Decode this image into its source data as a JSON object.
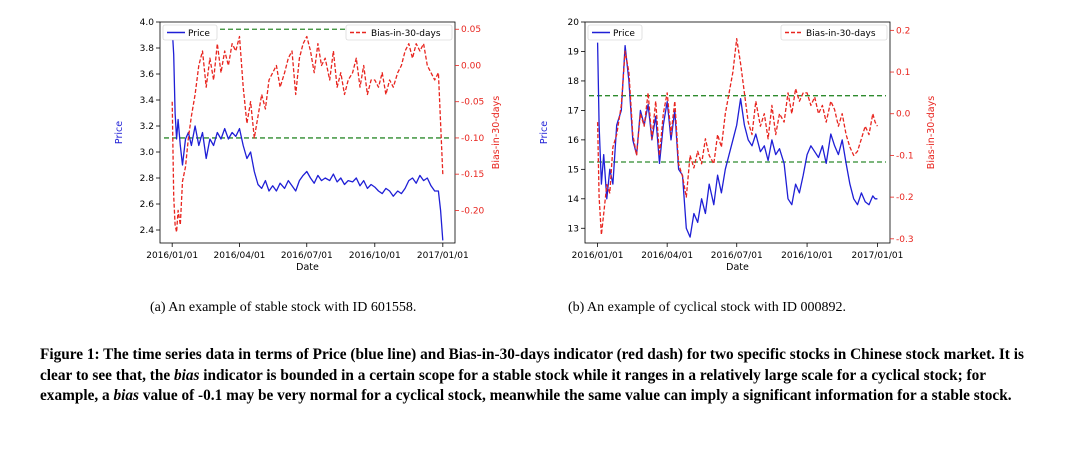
{
  "colors": {
    "price": "#1f1fd6",
    "bias": "#e8251f",
    "threshold": "#2e8b2e",
    "axis": "#000000"
  },
  "chart_data": [
    {
      "type": "line",
      "xlabel": "Date",
      "ylabel_left": "Price",
      "ylabel_right": "Bias-in-30-days",
      "x_range": [
        "2016-01-01",
        "2017-01-01"
      ],
      "x_ticks": [
        "2016/01/01",
        "2016/04/01",
        "2016/07/01",
        "2016/10/01",
        "2017/01/01"
      ],
      "y_left": {
        "min": 2.3,
        "max": 4.0,
        "ticks": [
          "2.4",
          "2.6",
          "2.8",
          "3.0",
          "3.2",
          "3.4",
          "3.6",
          "3.8",
          "4.0"
        ]
      },
      "y_right": {
        "min": -0.245,
        "max": 0.06,
        "ticks": [
          "-0.20",
          "-0.15",
          "-0.10",
          "-0.05",
          "0.00",
          "0.05"
        ]
      },
      "legend_placement": {
        "price": "top-left",
        "bias": "top-right"
      },
      "thresholds_right_axis": [
        0.05,
        -0.1
      ],
      "series": [
        {
          "name": "Price",
          "axis": "left",
          "style": "solid",
          "x": [
            "2016-01-01",
            "2016-01-03",
            "2016-01-05",
            "2016-01-07",
            "2016-01-09",
            "2016-01-12",
            "2016-01-15",
            "2016-01-19",
            "2016-01-23",
            "2016-01-27",
            "2016-02-01",
            "2016-02-06",
            "2016-02-11",
            "2016-02-16",
            "2016-02-21",
            "2016-02-26",
            "2016-03-02",
            "2016-03-07",
            "2016-03-12",
            "2016-03-17",
            "2016-03-22",
            "2016-03-27",
            "2016-04-01",
            "2016-04-06",
            "2016-04-11",
            "2016-04-16",
            "2016-04-21",
            "2016-04-26",
            "2016-05-01",
            "2016-05-06",
            "2016-05-11",
            "2016-05-16",
            "2016-05-21",
            "2016-05-26",
            "2016-06-01",
            "2016-06-06",
            "2016-06-11",
            "2016-06-16",
            "2016-06-21",
            "2016-06-26",
            "2016-07-01",
            "2016-07-06",
            "2016-07-11",
            "2016-07-16",
            "2016-07-21",
            "2016-07-26",
            "2016-08-01",
            "2016-08-06",
            "2016-08-11",
            "2016-08-16",
            "2016-08-21",
            "2016-08-26",
            "2016-09-01",
            "2016-09-06",
            "2016-09-11",
            "2016-09-16",
            "2016-09-21",
            "2016-09-26",
            "2016-10-01",
            "2016-10-06",
            "2016-10-11",
            "2016-10-16",
            "2016-10-21",
            "2016-10-26",
            "2016-11-01",
            "2016-11-06",
            "2016-11-11",
            "2016-11-16",
            "2016-11-21",
            "2016-11-26",
            "2016-12-01",
            "2016-12-06",
            "2016-12-11",
            "2016-12-16",
            "2016-12-21",
            "2016-12-26",
            "2016-12-29",
            "2017-01-01"
          ],
          "values": [
            3.95,
            3.75,
            3.3,
            3.1,
            3.25,
            3.05,
            2.9,
            3.1,
            3.15,
            3.05,
            3.2,
            3.05,
            3.15,
            2.95,
            3.1,
            3.05,
            3.15,
            3.1,
            3.18,
            3.1,
            3.15,
            3.12,
            3.18,
            3.05,
            2.95,
            3.0,
            2.85,
            2.75,
            2.72,
            2.78,
            2.7,
            2.74,
            2.7,
            2.76,
            2.72,
            2.78,
            2.74,
            2.7,
            2.78,
            2.82,
            2.85,
            2.8,
            2.76,
            2.82,
            2.78,
            2.8,
            2.78,
            2.83,
            2.77,
            2.8,
            2.75,
            2.78,
            2.77,
            2.8,
            2.74,
            2.78,
            2.72,
            2.75,
            2.73,
            2.7,
            2.68,
            2.72,
            2.7,
            2.66,
            2.7,
            2.68,
            2.72,
            2.78,
            2.8,
            2.76,
            2.82,
            2.78,
            2.8,
            2.74,
            2.7,
            2.7,
            2.55,
            2.32
          ]
        },
        {
          "name": "Bias-in-30-days",
          "axis": "right",
          "style": "dashed",
          "x": [
            "2016-01-01",
            "2016-01-03",
            "2016-01-05",
            "2016-01-07",
            "2016-01-09",
            "2016-01-12",
            "2016-01-15",
            "2016-01-19",
            "2016-01-23",
            "2016-01-27",
            "2016-02-01",
            "2016-02-06",
            "2016-02-11",
            "2016-02-16",
            "2016-02-21",
            "2016-02-26",
            "2016-03-02",
            "2016-03-07",
            "2016-03-12",
            "2016-03-17",
            "2016-03-22",
            "2016-03-27",
            "2016-04-01",
            "2016-04-06",
            "2016-04-11",
            "2016-04-16",
            "2016-04-21",
            "2016-04-26",
            "2016-05-01",
            "2016-05-06",
            "2016-05-11",
            "2016-05-16",
            "2016-05-21",
            "2016-05-26",
            "2016-06-01",
            "2016-06-06",
            "2016-06-11",
            "2016-06-16",
            "2016-06-21",
            "2016-06-26",
            "2016-07-01",
            "2016-07-06",
            "2016-07-11",
            "2016-07-16",
            "2016-07-21",
            "2016-07-26",
            "2016-08-01",
            "2016-08-06",
            "2016-08-11",
            "2016-08-16",
            "2016-08-21",
            "2016-08-26",
            "2016-09-01",
            "2016-09-06",
            "2016-09-11",
            "2016-09-16",
            "2016-09-21",
            "2016-09-26",
            "2016-10-01",
            "2016-10-06",
            "2016-10-11",
            "2016-10-16",
            "2016-10-21",
            "2016-10-26",
            "2016-11-01",
            "2016-11-06",
            "2016-11-11",
            "2016-11-16",
            "2016-11-21",
            "2016-11-26",
            "2016-12-01",
            "2016-12-06",
            "2016-12-11",
            "2016-12-16",
            "2016-12-21",
            "2016-12-26",
            "2016-12-29",
            "2017-01-01"
          ],
          "values": [
            -0.05,
            -0.18,
            -0.22,
            -0.23,
            -0.2,
            -0.22,
            -0.16,
            -0.14,
            -0.1,
            -0.07,
            -0.04,
            0.0,
            0.02,
            -0.03,
            0.01,
            -0.02,
            0.03,
            -0.01,
            0.02,
            0.0,
            0.03,
            0.02,
            0.04,
            -0.03,
            -0.08,
            -0.05,
            -0.1,
            -0.07,
            -0.04,
            -0.06,
            -0.02,
            -0.01,
            0.0,
            -0.03,
            -0.01,
            0.01,
            0.02,
            -0.04,
            0.01,
            0.03,
            0.04,
            0.02,
            -0.01,
            0.03,
            0.0,
            0.01,
            -0.02,
            0.02,
            -0.03,
            -0.01,
            -0.04,
            -0.02,
            -0.01,
            0.01,
            -0.03,
            0.0,
            -0.04,
            -0.02,
            -0.02,
            -0.03,
            -0.01,
            -0.04,
            -0.02,
            -0.03,
            -0.01,
            0.0,
            0.02,
            0.03,
            0.01,
            0.03,
            0.02,
            0.03,
            0.0,
            -0.01,
            -0.02,
            -0.01,
            -0.08,
            -0.15
          ]
        }
      ]
    },
    {
      "type": "line",
      "xlabel": "Date",
      "ylabel_left": "Price",
      "ylabel_right": "Bias-in-30-days",
      "x_range": [
        "2016-01-01",
        "2017-01-01"
      ],
      "x_ticks": [
        "2016/01/01",
        "2016/04/01",
        "2016/07/01",
        "2016/10/01",
        "2017/01/01"
      ],
      "y_left": {
        "min": 12.5,
        "max": 20.0,
        "ticks": [
          "13",
          "14",
          "15",
          "16",
          "17",
          "18",
          "19",
          "20"
        ]
      },
      "y_right": {
        "min": -0.31,
        "max": 0.22,
        "ticks": [
          "-0.3",
          "-0.2",
          "-0.1",
          "0.0",
          "0.1",
          "0.2"
        ]
      },
      "legend_placement": {
        "price": "top-left",
        "bias": "top-right"
      },
      "thresholds_left_axis": [
        17.5,
        15.25
      ],
      "series": [
        {
          "name": "Price",
          "axis": "left",
          "style": "solid",
          "x": [
            "2016-01-01",
            "2016-01-03",
            "2016-01-06",
            "2016-01-09",
            "2016-01-13",
            "2016-01-17",
            "2016-01-21",
            "2016-01-26",
            "2016-02-01",
            "2016-02-06",
            "2016-02-11",
            "2016-02-16",
            "2016-02-21",
            "2016-02-26",
            "2016-03-02",
            "2016-03-07",
            "2016-03-12",
            "2016-03-17",
            "2016-03-22",
            "2016-03-27",
            "2016-04-01",
            "2016-04-06",
            "2016-04-11",
            "2016-04-16",
            "2016-04-21",
            "2016-04-26",
            "2016-05-01",
            "2016-05-06",
            "2016-05-11",
            "2016-05-16",
            "2016-05-21",
            "2016-05-26",
            "2016-06-01",
            "2016-06-06",
            "2016-06-11",
            "2016-06-16",
            "2016-06-21",
            "2016-06-26",
            "2016-07-01",
            "2016-07-06",
            "2016-07-11",
            "2016-07-16",
            "2016-07-21",
            "2016-07-26",
            "2016-08-01",
            "2016-08-06",
            "2016-08-11",
            "2016-08-16",
            "2016-08-21",
            "2016-08-26",
            "2016-09-01",
            "2016-09-06",
            "2016-09-11",
            "2016-09-16",
            "2016-09-21",
            "2016-09-26",
            "2016-10-01",
            "2016-10-06",
            "2016-10-11",
            "2016-10-16",
            "2016-10-21",
            "2016-10-26",
            "2016-11-01",
            "2016-11-06",
            "2016-11-11",
            "2016-11-16",
            "2016-11-21",
            "2016-11-26",
            "2016-12-01",
            "2016-12-06",
            "2016-12-11",
            "2016-12-16",
            "2016-12-21",
            "2016-12-26",
            "2016-12-29",
            "2017-01-01"
          ],
          "values": [
            19.3,
            16.5,
            14.5,
            15.5,
            14.0,
            15.0,
            14.5,
            16.5,
            17.0,
            19.2,
            18.0,
            16.0,
            15.5,
            17.0,
            16.5,
            17.2,
            16.0,
            16.8,
            15.2,
            16.5,
            17.3,
            16.0,
            17.0,
            15.0,
            14.8,
            13.0,
            12.7,
            13.5,
            13.2,
            14.0,
            13.5,
            14.5,
            13.8,
            14.8,
            14.2,
            15.0,
            15.5,
            16.0,
            16.5,
            17.4,
            16.5,
            16.0,
            15.8,
            16.2,
            15.6,
            15.8,
            15.3,
            16.0,
            15.5,
            15.7,
            15.2,
            14.0,
            13.8,
            14.5,
            14.2,
            14.8,
            15.5,
            15.8,
            15.6,
            15.4,
            15.8,
            15.2,
            16.2,
            15.8,
            15.5,
            16.0,
            15.2,
            14.5,
            14.0,
            13.8,
            14.2,
            13.9,
            13.8,
            14.1,
            14.0,
            14.0
          ]
        },
        {
          "name": "Bias-in-30-days",
          "axis": "right",
          "style": "dashed",
          "x": [
            "2016-01-01",
            "2016-01-03",
            "2016-01-06",
            "2016-01-09",
            "2016-01-13",
            "2016-01-17",
            "2016-01-21",
            "2016-01-26",
            "2016-02-01",
            "2016-02-06",
            "2016-02-11",
            "2016-02-16",
            "2016-02-21",
            "2016-02-26",
            "2016-03-02",
            "2016-03-07",
            "2016-03-12",
            "2016-03-17",
            "2016-03-22",
            "2016-03-27",
            "2016-04-01",
            "2016-04-06",
            "2016-04-11",
            "2016-04-16",
            "2016-04-21",
            "2016-04-26",
            "2016-05-01",
            "2016-05-06",
            "2016-05-11",
            "2016-05-16",
            "2016-05-21",
            "2016-05-26",
            "2016-06-01",
            "2016-06-06",
            "2016-06-11",
            "2016-06-16",
            "2016-06-21",
            "2016-06-26",
            "2016-07-01",
            "2016-07-06",
            "2016-07-11",
            "2016-07-16",
            "2016-07-21",
            "2016-07-26",
            "2016-08-01",
            "2016-08-06",
            "2016-08-11",
            "2016-08-16",
            "2016-08-21",
            "2016-08-26",
            "2016-09-01",
            "2016-09-06",
            "2016-09-11",
            "2016-09-16",
            "2016-09-21",
            "2016-09-26",
            "2016-10-01",
            "2016-10-06",
            "2016-10-11",
            "2016-10-16",
            "2016-10-21",
            "2016-10-26",
            "2016-11-01",
            "2016-11-06",
            "2016-11-11",
            "2016-11-16",
            "2016-11-21",
            "2016-11-26",
            "2016-12-01",
            "2016-12-06",
            "2016-12-11",
            "2016-12-16",
            "2016-12-21",
            "2016-12-26",
            "2016-12-29",
            "2017-01-01"
          ],
          "values": [
            -0.02,
            -0.2,
            -0.29,
            -0.24,
            -0.17,
            -0.19,
            -0.08,
            -0.05,
            0.02,
            0.15,
            0.1,
            -0.05,
            -0.1,
            0.0,
            -0.03,
            0.05,
            -0.06,
            0.03,
            -0.1,
            0.0,
            0.05,
            -0.05,
            0.03,
            -0.12,
            -0.15,
            -0.2,
            -0.1,
            -0.13,
            -0.09,
            -0.12,
            -0.06,
            -0.1,
            -0.12,
            -0.05,
            -0.08,
            0.0,
            0.05,
            0.1,
            0.18,
            0.12,
            0.05,
            -0.02,
            -0.05,
            0.03,
            -0.03,
            0.0,
            -0.06,
            0.02,
            -0.05,
            0.0,
            -0.02,
            0.05,
            0.0,
            0.06,
            0.03,
            0.05,
            0.05,
            0.02,
            0.04,
            0.0,
            0.02,
            -0.02,
            0.03,
            0.01,
            -0.03,
            0.0,
            -0.05,
            -0.08,
            -0.1,
            -0.09,
            -0.06,
            -0.03,
            -0.05,
            0.0,
            -0.02,
            -0.03
          ]
        }
      ]
    }
  ],
  "subcaptions": [
    "(a) An example of stable stock with ID 601558.",
    "(b) An example of cyclical stock with ID 000892."
  ],
  "caption": {
    "prefix": "Figure 1: The time series data in terms of Price (blue line) and Bias-in-30-days indicator (red dash) for two specific stocks in Chinese stock market. It is clear to see that, the ",
    "bias1": "bias",
    "mid": " indicator is bounded in a certain scope for a stable stock while it ranges in a relatively large scale for a cyclical stock; for example, a ",
    "bias2": "bias",
    "suffix": " value of -0.1 may be very normal for a cyclical stock, meanwhile the same value can imply a significant information for a stable stock."
  }
}
